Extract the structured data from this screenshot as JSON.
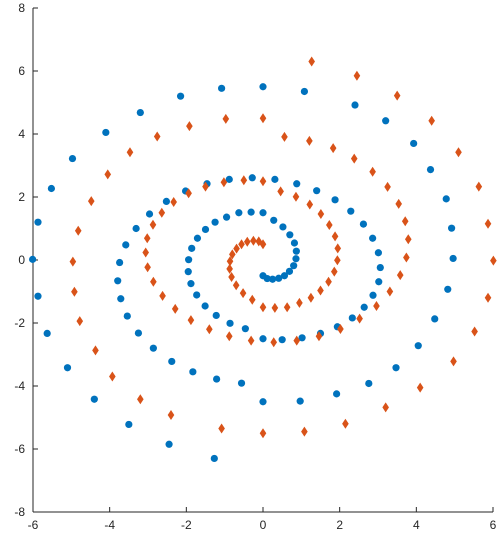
{
  "chart_data": {
    "type": "scatter",
    "title": "",
    "xlabel": "",
    "ylabel": "",
    "xlim": [
      -6,
      6
    ],
    "ylim": [
      -8,
      8
    ],
    "x_ticks": [
      -6,
      -4,
      -2,
      0,
      2,
      4,
      6
    ],
    "y_ticks": [
      -8,
      -6,
      -4,
      -2,
      0,
      2,
      4,
      6,
      8
    ],
    "x_tick_labels": [
      "-6",
      "-4",
      "-2",
      "0",
      "2",
      "4",
      "6"
    ],
    "y_tick_labels": [
      "-8",
      "-6",
      "-4",
      "-2",
      "0",
      "2",
      "4",
      "6",
      "8"
    ],
    "grid": false,
    "legend": "none",
    "series": [
      {
        "marker": "circle",
        "color": "#0072BD",
        "points": [
          [
            0,
            -0.5
          ],
          [
            0.11,
            -0.59
          ],
          [
            0.25,
            -0.61
          ],
          [
            0.41,
            -0.58
          ],
          [
            0.56,
            -0.5
          ],
          [
            0.69,
            -0.36
          ],
          [
            0.8,
            -0.18
          ],
          [
            0.86,
            0.04
          ],
          [
            0.87,
            0.28
          ],
          [
            0.82,
            0.54
          ],
          [
            0.7,
            0.8
          ],
          [
            0.52,
            1.05
          ],
          [
            0.28,
            1.26
          ],
          [
            0,
            1.5
          ],
          [
            -0.31,
            1.52
          ],
          [
            -0.63,
            1.5
          ],
          [
            -0.95,
            1.36
          ],
          [
            -1.25,
            1.2
          ],
          [
            -1.5,
            0.97
          ],
          [
            -1.71,
            0.69
          ],
          [
            -1.86,
            0.37
          ],
          [
            -1.94,
            0.01
          ],
          [
            -1.95,
            -0.37
          ],
          [
            -1.88,
            -0.75
          ],
          [
            -1.73,
            -1.11
          ],
          [
            -1.51,
            -1.46
          ],
          [
            -1.22,
            -1.76
          ],
          [
            -0.86,
            -2.01
          ],
          [
            -0.46,
            -2.18
          ],
          [
            0,
            -2.5
          ],
          [
            0.5,
            -2.53
          ],
          [
            1.02,
            -2.47
          ],
          [
            1.5,
            -2.33
          ],
          [
            1.94,
            -2.12
          ],
          [
            2.33,
            -1.84
          ],
          [
            2.64,
            -1.5
          ],
          [
            2.87,
            -1.12
          ],
          [
            3.02,
            -0.69
          ],
          [
            3.06,
            -0.24
          ],
          [
            3.01,
            0.23
          ],
          [
            2.86,
            0.69
          ],
          [
            2.62,
            1.14
          ],
          [
            2.29,
            1.55
          ],
          [
            1.88,
            1.91
          ],
          [
            1.4,
            2.2
          ],
          [
            0.88,
            2.42
          ],
          [
            0.31,
            2.56
          ],
          [
            -0.28,
            2.61
          ],
          [
            -0.88,
            2.56
          ],
          [
            -1.46,
            2.42
          ],
          [
            -2.02,
            2.19
          ],
          [
            -2.52,
            1.86
          ],
          [
            -2.96,
            1.46
          ],
          [
            -3.31,
            1.0
          ],
          [
            -3.58,
            0.48
          ],
          [
            -3.74,
            -0.08
          ],
          [
            -3.79,
            -0.66
          ],
          [
            -3.71,
            -1.23
          ],
          [
            -3.54,
            -1.78
          ],
          [
            -3.25,
            -2.32
          ],
          [
            -2.86,
            -2.8
          ],
          [
            -2.38,
            -3.22
          ],
          [
            -1.83,
            -3.55
          ],
          [
            -1.21,
            -3.78
          ],
          [
            -0.56,
            -3.91
          ],
          [
            0,
            -4.5
          ],
          [
            0.97,
            -4.48
          ],
          [
            1.92,
            -4.25
          ],
          [
            2.76,
            -3.92
          ],
          [
            3.47,
            -3.42
          ],
          [
            4.05,
            -2.72
          ],
          [
            4.48,
            -1.87
          ],
          [
            4.82,
            -0.93
          ],
          [
            4.96,
            0.05
          ],
          [
            4.92,
            1.01
          ],
          [
            4.78,
            1.94
          ],
          [
            4.37,
            2.87
          ],
          [
            3.93,
            3.7
          ],
          [
            3.2,
            4.42
          ],
          [
            2.4,
            4.92
          ],
          [
            1.08,
            5.35
          ],
          [
            0,
            5.5
          ],
          [
            -1.08,
            5.45
          ],
          [
            -2.15,
            5.2
          ],
          [
            -3.2,
            4.68
          ],
          [
            -4.1,
            4.05
          ],
          [
            -4.97,
            3.22
          ],
          [
            -5.52,
            2.27
          ],
          [
            -5.87,
            1.2
          ],
          [
            -6.01,
            0.02
          ],
          [
            -5.87,
            -1.15
          ],
          [
            -5.63,
            -2.33
          ],
          [
            -5.1,
            -3.42
          ],
          [
            -4.4,
            -4.42
          ],
          [
            -3.5,
            -5.22
          ],
          [
            -2.45,
            -5.85
          ],
          [
            -1.27,
            -6.3
          ]
        ]
      },
      {
        "marker": "diamond",
        "color": "#D95319",
        "points": [
          [
            0,
            0.5
          ],
          [
            -0.11,
            0.59
          ],
          [
            -0.25,
            0.61
          ],
          [
            -0.41,
            0.58
          ],
          [
            -0.56,
            0.5
          ],
          [
            -0.69,
            0.36
          ],
          [
            -0.8,
            0.18
          ],
          [
            -0.86,
            -0.04
          ],
          [
            -0.87,
            -0.28
          ],
          [
            -0.82,
            -0.54
          ],
          [
            -0.7,
            -0.8
          ],
          [
            -0.52,
            -1.05
          ],
          [
            -0.28,
            -1.26
          ],
          [
            0,
            -1.5
          ],
          [
            0.31,
            -1.52
          ],
          [
            0.63,
            -1.5
          ],
          [
            0.95,
            -1.36
          ],
          [
            1.25,
            -1.2
          ],
          [
            1.5,
            -0.97
          ],
          [
            1.71,
            -0.69
          ],
          [
            1.86,
            -0.37
          ],
          [
            1.94,
            -0.01
          ],
          [
            1.95,
            0.37
          ],
          [
            1.88,
            0.75
          ],
          [
            1.73,
            1.11
          ],
          [
            1.51,
            1.46
          ],
          [
            1.22,
            1.76
          ],
          [
            0.86,
            2.01
          ],
          [
            0.46,
            2.18
          ],
          [
            0,
            2.5
          ],
          [
            -0.5,
            2.53
          ],
          [
            -1.02,
            2.47
          ],
          [
            -1.5,
            2.33
          ],
          [
            -1.94,
            2.12
          ],
          [
            -2.33,
            1.84
          ],
          [
            -2.64,
            1.5
          ],
          [
            -2.87,
            1.12
          ],
          [
            -3.02,
            0.69
          ],
          [
            -3.06,
            0.24
          ],
          [
            -3.01,
            -0.23
          ],
          [
            -2.86,
            -0.69
          ],
          [
            -2.62,
            -1.14
          ],
          [
            -2.29,
            -1.55
          ],
          [
            -1.88,
            -1.91
          ],
          [
            -1.4,
            -2.2
          ],
          [
            -0.88,
            -2.42
          ],
          [
            -0.31,
            -2.56
          ],
          [
            0.28,
            -2.61
          ],
          [
            0.88,
            -2.56
          ],
          [
            1.46,
            -2.42
          ],
          [
            2.02,
            -2.19
          ],
          [
            2.52,
            -1.86
          ],
          [
            2.96,
            -1.46
          ],
          [
            3.31,
            -1.0
          ],
          [
            3.58,
            -0.48
          ],
          [
            3.74,
            0.08
          ],
          [
            3.79,
            0.66
          ],
          [
            3.71,
            1.23
          ],
          [
            3.54,
            1.78
          ],
          [
            3.25,
            2.32
          ],
          [
            2.86,
            2.8
          ],
          [
            2.38,
            3.22
          ],
          [
            1.83,
            3.55
          ],
          [
            1.21,
            3.78
          ],
          [
            0.56,
            3.91
          ],
          [
            0,
            4.5
          ],
          [
            -0.97,
            4.48
          ],
          [
            -1.92,
            4.25
          ],
          [
            -2.76,
            3.92
          ],
          [
            -3.47,
            3.42
          ],
          [
            -4.05,
            2.72
          ],
          [
            -4.48,
            1.87
          ],
          [
            -4.82,
            0.93
          ],
          [
            -4.96,
            -0.05
          ],
          [
            -4.92,
            -1.01
          ],
          [
            -4.78,
            -1.94
          ],
          [
            -4.37,
            -2.87
          ],
          [
            -3.93,
            -3.7
          ],
          [
            -3.2,
            -4.42
          ],
          [
            -2.4,
            -4.92
          ],
          [
            -1.08,
            -5.35
          ],
          [
            0,
            -5.5
          ],
          [
            1.08,
            -5.45
          ],
          [
            2.15,
            -5.2
          ],
          [
            3.2,
            -4.68
          ],
          [
            4.1,
            -4.05
          ],
          [
            4.97,
            -3.22
          ],
          [
            5.52,
            -2.27
          ],
          [
            5.87,
            -1.2
          ],
          [
            6.01,
            -0.02
          ],
          [
            5.87,
            1.15
          ],
          [
            5.63,
            2.33
          ],
          [
            5.1,
            3.42
          ],
          [
            4.4,
            4.42
          ],
          [
            3.5,
            5.22
          ],
          [
            2.45,
            5.85
          ],
          [
            1.27,
            6.3
          ]
        ]
      }
    ]
  }
}
